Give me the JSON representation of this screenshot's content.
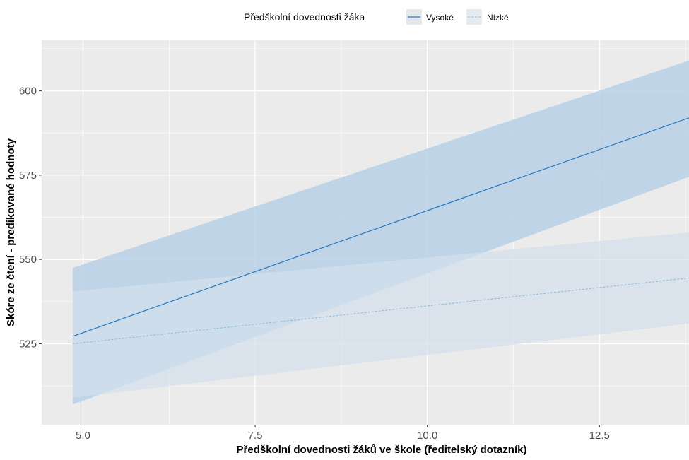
{
  "chart_data": {
    "type": "line",
    "title": "",
    "xlabel": "Předškolní dovednosti žáků ve škole (ředitelský dotazník)",
    "ylabel": "Skóre ze čtení - predikované hodnoty",
    "xlim": [
      4.4,
      13.8
    ],
    "ylim": [
      501,
      615
    ],
    "x_ticks": [
      5.0,
      7.5,
      10.0,
      12.5
    ],
    "x_tick_labels": [
      "5.0",
      "7.5",
      "10.0",
      "12.5"
    ],
    "y_ticks": [
      525,
      550,
      575,
      600
    ],
    "y_tick_labels": [
      "525",
      "550",
      "575",
      "600"
    ],
    "grid": true,
    "legend": {
      "title": "Předškolní dovednosti žáka",
      "position": "top",
      "entries": [
        "Vysoké",
        "Nízké"
      ]
    },
    "series": [
      {
        "name": "Vysoké",
        "line_style": "solid",
        "x": [
          4.85,
          13.8
        ],
        "fit": [
          527.2,
          592.0
        ],
        "lower": [
          507.0,
          574.5
        ],
        "upper": [
          547.5,
          609.0
        ]
      },
      {
        "name": "Nízké",
        "line_style": "dashed",
        "x": [
          4.85,
          13.8
        ],
        "fit": [
          525.0,
          544.5
        ],
        "lower": [
          509.0,
          531.0
        ],
        "upper": [
          540.5,
          558.0
        ]
      }
    ]
  },
  "colors": {
    "panel_bg": "#ebebeb",
    "grid_major": "#ffffff",
    "vysoke_line": "#2878be",
    "vysoke_ribbon": "#b7d1e6",
    "nizke_line": "#8cb8d8",
    "nizke_ribbon": "#d3e0ec",
    "text": "#000000",
    "tick_text": "#4d4d4d"
  }
}
